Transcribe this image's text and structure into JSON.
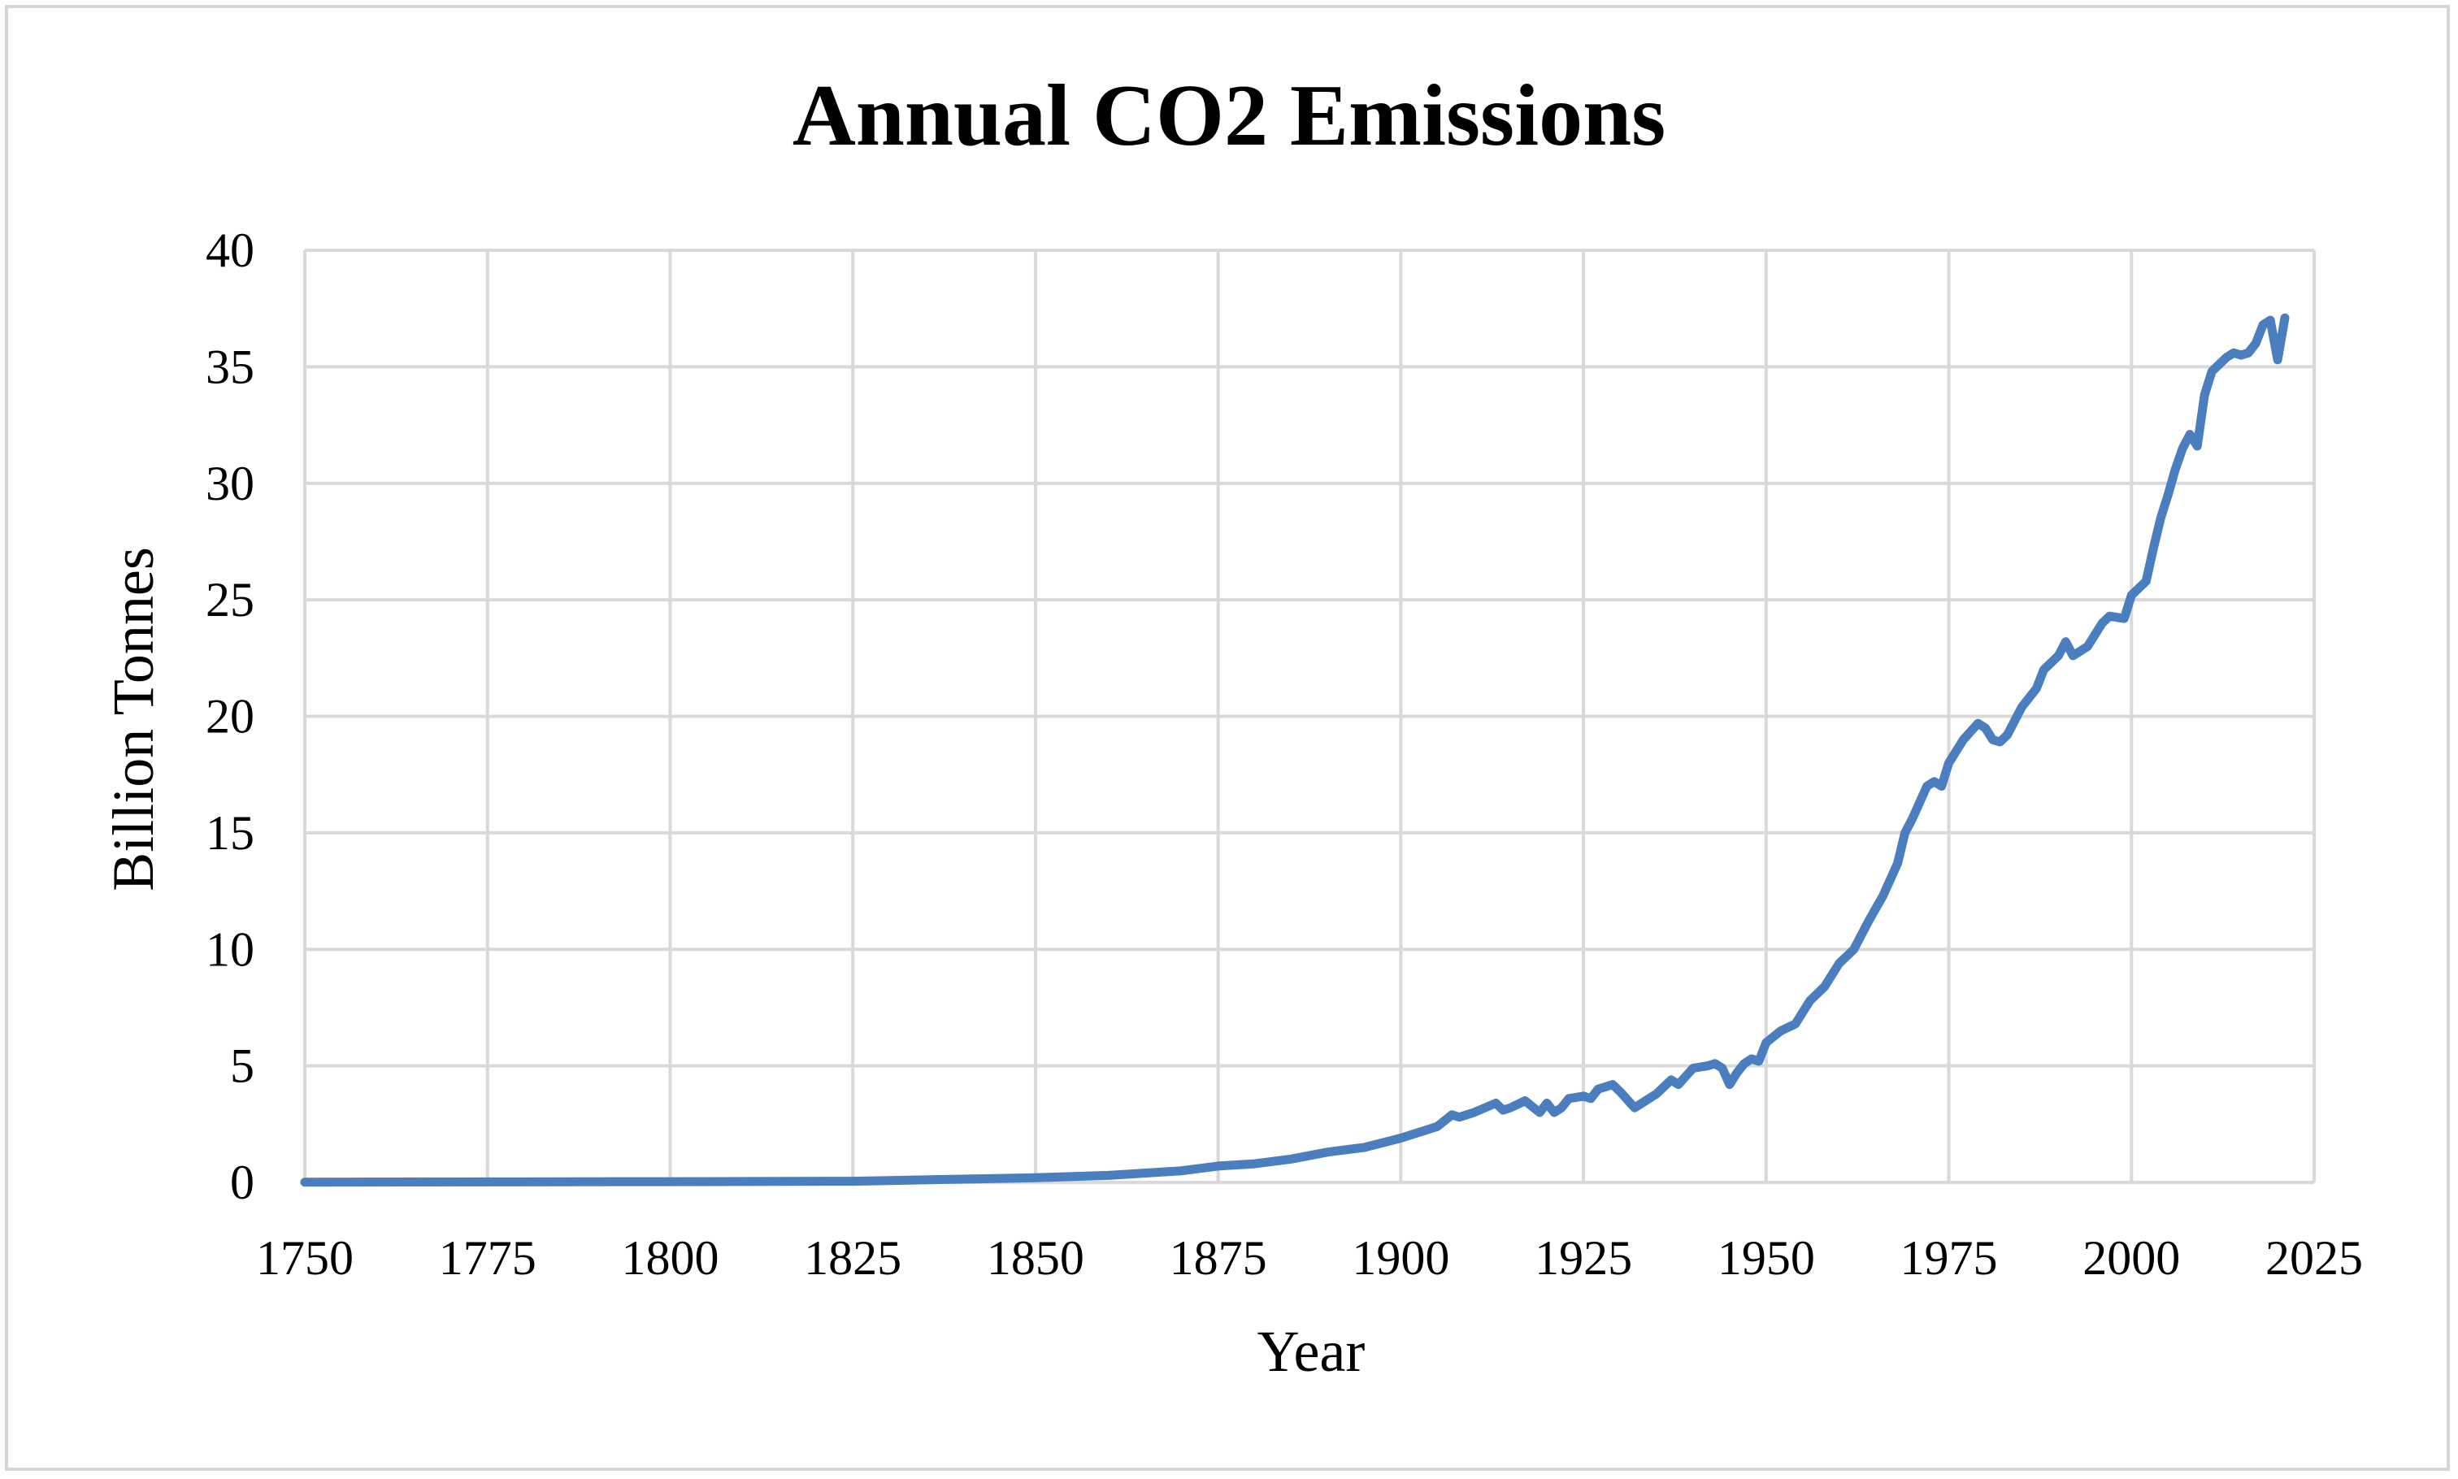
{
  "chart_data": {
    "type": "line",
    "title": "Annual CO2 Emissions",
    "xlabel": "Year",
    "ylabel": "Billion Tonnes",
    "xlim": [
      1750,
      2025
    ],
    "ylim": [
      0,
      40
    ],
    "x_ticks": [
      "1750",
      "1775",
      "1800",
      "1825",
      "1850",
      "1875",
      "1900",
      "1925",
      "1950",
      "1975",
      "2000",
      "2025"
    ],
    "y_ticks": [
      "0",
      "5",
      "10",
      "15",
      "20",
      "25",
      "30",
      "35",
      "40"
    ],
    "grid": true,
    "colors": {
      "line": "#4a7ebf",
      "grid": "#d9d9d9",
      "frame": "#d6d6d6"
    },
    "series": [
      {
        "name": "Annual CO2 Emissions",
        "x": [
          1750,
          1775,
          1800,
          1825,
          1830,
          1850,
          1860,
          1870,
          1875,
          1880,
          1885,
          1890,
          1895,
          1900,
          1905,
          1907,
          1908,
          1910,
          1913,
          1914,
          1915,
          1917,
          1919,
          1920,
          1921,
          1922,
          1923,
          1925,
          1926,
          1927,
          1929,
          1930,
          1932,
          1935,
          1937,
          1938,
          1940,
          1942,
          1943,
          1944,
          1945,
          1946,
          1947,
          1948,
          1949,
          1950,
          1952,
          1954,
          1956,
          1958,
          1960,
          1962,
          1964,
          1966,
          1968,
          1969,
          1970,
          1972,
          1973,
          1974,
          1975,
          1977,
          1979,
          1980,
          1981,
          1982,
          1983,
          1985,
          1987,
          1988,
          1990,
          1991,
          1992,
          1993,
          1994,
          1996,
          1997,
          1999,
          2000,
          2002,
          2003,
          2004,
          2005,
          2006,
          2007,
          2008,
          2009,
          2010,
          2011,
          2012,
          2013,
          2014,
          2015,
          2016,
          2017,
          2018,
          2019,
          2020,
          2021
        ],
        "values": [
          0.01,
          0.02,
          0.03,
          0.05,
          0.08,
          0.2,
          0.3,
          0.5,
          0.7,
          0.8,
          1.0,
          1.3,
          1.5,
          1.9,
          2.4,
          2.9,
          2.8,
          3.0,
          3.4,
          3.1,
          3.2,
          3.5,
          3.0,
          3.4,
          3.0,
          3.2,
          3.6,
          3.7,
          3.6,
          4.0,
          4.2,
          3.9,
          3.2,
          3.8,
          4.4,
          4.2,
          4.9,
          5.0,
          5.1,
          4.9,
          4.2,
          4.7,
          5.1,
          5.3,
          5.2,
          6.0,
          6.5,
          6.8,
          7.8,
          8.4,
          9.4,
          10.0,
          11.2,
          12.3,
          13.7,
          15.0,
          15.6,
          17.0,
          17.2,
          17.0,
          18.0,
          19.0,
          19.7,
          19.5,
          19.0,
          18.9,
          19.2,
          20.4,
          21.2,
          22.0,
          22.6,
          23.2,
          22.6,
          22.8,
          23.0,
          24.0,
          24.3,
          24.2,
          25.2,
          25.8,
          27.2,
          28.5,
          29.5,
          30.6,
          31.5,
          32.1,
          31.6,
          33.8,
          34.8,
          35.1,
          35.4,
          35.6,
          35.5,
          35.6,
          36.0,
          36.8,
          37.0,
          35.3,
          37.1
        ]
      }
    ]
  }
}
